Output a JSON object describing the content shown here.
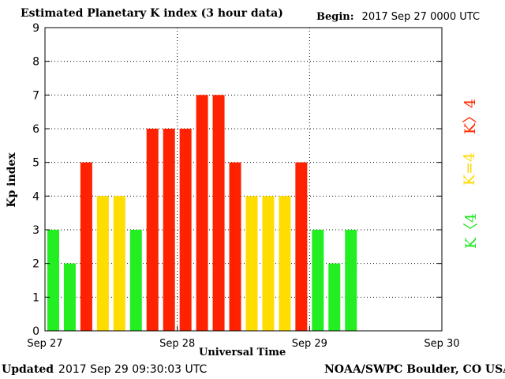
{
  "title": "Estimated Planetary K index (3 hour data)",
  "begin": {
    "label": "Begin:",
    "value": "2017 Sep 27 0000 UTC"
  },
  "updated": {
    "label": "Updated",
    "value": "2017 Sep 29 09:30:03 UTC"
  },
  "credit": "NOAA/SWPC Boulder, CO USA",
  "legend": {
    "high": {
      "text": "K〉4",
      "color": "#ff2a00"
    },
    "mid": {
      "text": "K=4",
      "color": "#ffd800"
    },
    "low": {
      "text": "K〈4",
      "color": "#22e622"
    }
  },
  "colors": {
    "green": "#22ee22",
    "yellow": "#ffdd00",
    "red": "#ff2200"
  },
  "chart_data": {
    "type": "bar",
    "ylabel": "Kp index",
    "xlabel": "Universal Time",
    "ylim": [
      0,
      9
    ],
    "yticks": [
      "0",
      "1",
      "2",
      "3",
      "4",
      "5",
      "6",
      "7",
      "8",
      "9"
    ],
    "xtick_labels": [
      "Sep 27",
      "Sep 28",
      "Sep 29",
      "Sep 30"
    ],
    "grid": true,
    "slots_total": 24,
    "values": [
      3,
      2,
      5,
      4,
      4,
      3,
      6,
      6,
      6,
      7,
      7,
      5,
      4,
      4,
      4,
      5,
      3,
      2,
      3
    ],
    "bar_colors": [
      "green",
      "green",
      "red",
      "yellow",
      "yellow",
      "green",
      "red",
      "red",
      "red",
      "red",
      "red",
      "red",
      "yellow",
      "yellow",
      "yellow",
      "red",
      "green",
      "green",
      "green"
    ]
  }
}
